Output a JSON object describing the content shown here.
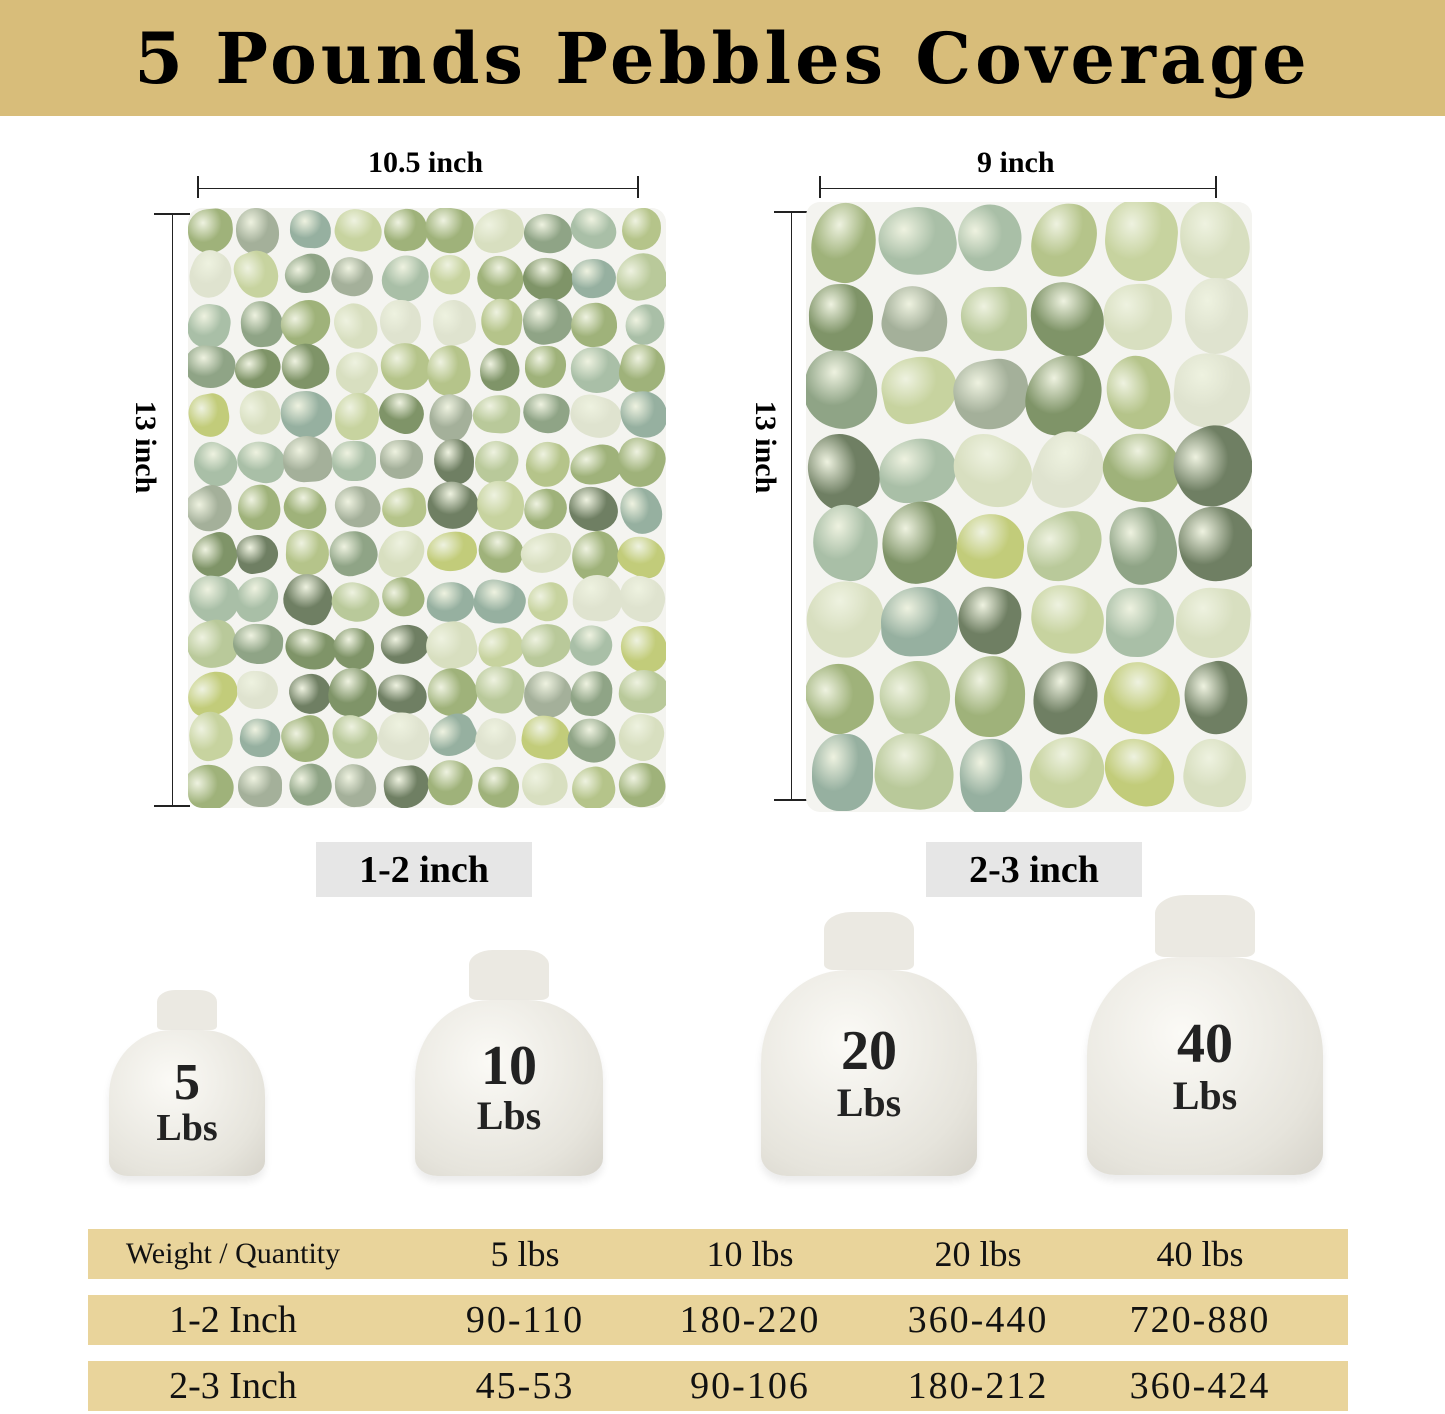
{
  "title": "5 Pounds Pebbles Coverage",
  "left_panel": {
    "width": "10.5 inch",
    "height": "13 inch",
    "size_label": "1-2 inch"
  },
  "right_panel": {
    "width": "9 inch",
    "height": "13 inch",
    "size_label": "2-3 inch"
  },
  "bags": [
    {
      "weight": "5",
      "unit": "Lbs"
    },
    {
      "weight": "10",
      "unit": "Lbs"
    },
    {
      "weight": "20",
      "unit": "Lbs"
    },
    {
      "weight": "40",
      "unit": "Lbs"
    }
  ],
  "table": {
    "header": [
      "Weight / Quantity",
      "5 lbs",
      "10 lbs",
      "20 lbs",
      "40 lbs"
    ],
    "rows": [
      [
        "1-2 Inch",
        "90-110",
        "180-220",
        "360-440",
        "720-880"
      ],
      [
        "2-3 Inch",
        "45-53",
        "90-106",
        "180-212",
        "360-424"
      ]
    ]
  },
  "colors": {
    "header_band": "#d8bd7a",
    "table_row": "#e9d49b",
    "label_box": "#e6e6e6"
  }
}
